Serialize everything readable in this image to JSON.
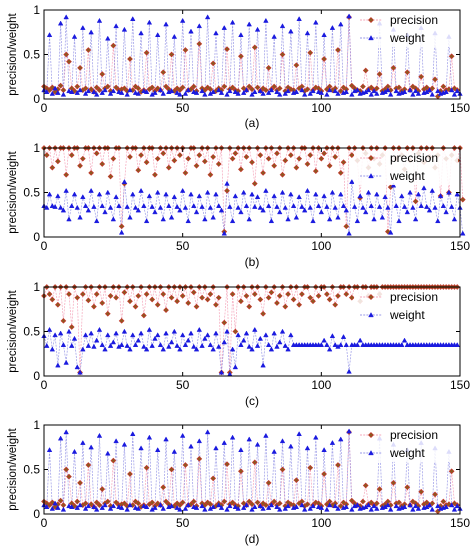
{
  "colors": {
    "precision_line": "#f28aa5",
    "precision_marker": "#c0392b",
    "precision_marker_inner": "#8a5a1f",
    "weight_line": "#7a7adf",
    "weight_marker": "#1a1adf",
    "axis": "#000000",
    "background": "#ffffff"
  },
  "chart_data": [
    {
      "type": "line",
      "caption": "(a)",
      "ylabel": "precision/weight",
      "xlabel": "",
      "xlim": [
        0,
        150
      ],
      "ylim": [
        0,
        1
      ],
      "xticks": [
        "0",
        "50",
        "100",
        "150"
      ],
      "yticks": [
        "0",
        "0.5",
        "1"
      ],
      "legend_position": "top-right",
      "grid": false,
      "series": [
        {
          "name": "precision",
          "pattern": "pr_a"
        },
        {
          "name": "weight",
          "pattern": "wt_a"
        }
      ]
    },
    {
      "type": "line",
      "caption": "(b)",
      "ylabel": "precision/weight",
      "xlabel": "",
      "xlim": [
        0,
        150
      ],
      "ylim": [
        0,
        1
      ],
      "xticks": [
        "0",
        "50",
        "100",
        "150"
      ],
      "yticks": [
        "0",
        "0.5",
        "1"
      ],
      "legend_position": "top-right",
      "grid": false,
      "series": [
        {
          "name": "precision",
          "pattern": "pr_b"
        },
        {
          "name": "weight",
          "pattern": "wt_b"
        }
      ]
    },
    {
      "type": "line",
      "caption": "(c)",
      "ylabel": "precision/weight",
      "xlabel": "",
      "xlim": [
        0,
        150
      ],
      "ylim": [
        0,
        1
      ],
      "xticks": [
        "0",
        "50",
        "100",
        "150"
      ],
      "yticks": [
        "0",
        "0.5",
        "1"
      ],
      "legend_position": "top-right",
      "grid": false,
      "series": [
        {
          "name": "precision",
          "pattern": "pr_c"
        },
        {
          "name": "weight",
          "pattern": "wt_c"
        }
      ]
    },
    {
      "type": "line",
      "caption": "(d)",
      "ylabel": "precision/weight",
      "xlabel": "",
      "xlim": [
        0,
        150
      ],
      "ylim": [
        0,
        1
      ],
      "xticks": [
        "0",
        "50",
        "100",
        "150"
      ],
      "yticks": [
        "0",
        "0.5",
        "1"
      ],
      "legend_position": "top-right",
      "grid": false,
      "series": [
        {
          "name": "precision",
          "pattern": "pr_a"
        },
        {
          "name": "weight",
          "pattern": "wt_a"
        }
      ]
    }
  ],
  "patterns": {
    "pr_a": [
      0.14,
      0.12,
      0.1,
      0.13,
      0.08,
      0.11,
      0.15,
      0.1,
      0.5,
      0.42,
      0.12,
      0.09,
      0.14,
      0.35,
      0.1,
      0.12,
      0.55,
      0.11,
      0.08,
      0.13,
      0.1,
      0.28,
      0.12,
      0.14,
      0.09,
      0.6,
      0.13,
      0.1,
      0.11,
      0.12,
      0.09,
      0.45,
      0.1,
      0.14,
      0.12,
      0.08,
      0.1,
      0.52,
      0.11,
      0.13,
      0.09,
      0.12,
      0.1,
      0.3,
      0.14,
      0.11,
      0.5,
      0.09,
      0.12,
      0.1,
      0.13,
      0.55,
      0.1,
      0.11,
      0.14,
      0.09,
      0.62,
      0.12,
      0.1,
      0.13,
      0.11,
      0.4,
      0.09,
      0.12,
      0.1,
      0.14,
      0.56,
      0.11,
      0.13,
      0.1,
      0.09,
      0.48,
      0.12,
      0.1,
      0.14,
      0.11,
      0.58,
      0.13,
      0.09,
      0.12,
      0.1,
      0.35,
      0.11,
      0.14,
      0.1,
      0.12,
      0.5,
      0.09,
      0.13,
      0.11,
      0.1,
      0.38,
      0.12,
      0.14,
      0.09,
      0.11,
      0.52,
      0.1,
      0.13,
      0.12,
      0.09,
      0.45,
      0.11,
      0.14,
      0.1,
      0.12,
      0.55,
      0.09,
      0.13,
      0.11,
      0.92,
      0.15,
      0.12,
      0.1,
      0.09,
      0.14,
      0.32,
      0.11,
      0.13,
      0.1,
      0.12,
      0.28,
      0.09,
      0.11,
      0.14,
      0.1,
      0.35,
      0.12,
      0.13,
      0.09,
      0.11,
      0.3,
      0.1,
      0.14,
      0.12,
      0.09,
      0.25,
      0.11,
      0.13,
      0.1,
      0.12,
      0.22,
      0.03,
      0.09,
      0.14,
      0.1,
      0.11,
      0.48,
      0.12,
      0.1
    ],
    "wt_a": [
      0.1,
      0.08,
      0.72,
      0.06,
      0.12,
      0.07,
      0.85,
      0.05,
      0.92,
      0.09,
      0.08,
      0.7,
      0.07,
      0.1,
      0.8,
      0.06,
      0.09,
      0.75,
      0.08,
      0.05,
      0.88,
      0.07,
      0.1,
      0.68,
      0.06,
      0.09,
      0.82,
      0.08,
      0.07,
      0.78,
      0.05,
      0.1,
      0.9,
      0.07,
      0.06,
      0.74,
      0.09,
      0.08,
      0.86,
      0.05,
      0.07,
      0.72,
      0.1,
      0.06,
      0.84,
      0.08,
      0.09,
      0.7,
      0.07,
      0.05,
      0.88,
      0.06,
      0.1,
      0.76,
      0.08,
      0.07,
      0.82,
      0.09,
      0.05,
      0.92,
      0.06,
      0.08,
      0.74,
      0.1,
      0.07,
      0.8,
      0.05,
      0.09,
      0.86,
      0.08,
      0.06,
      0.72,
      0.07,
      0.1,
      0.84,
      0.05,
      0.08,
      0.78,
      0.09,
      0.06,
      0.88,
      0.07,
      0.1,
      0.7,
      0.08,
      0.05,
      0.82,
      0.06,
      0.09,
      0.76,
      0.07,
      0.08,
      0.9,
      0.1,
      0.05,
      0.74,
      0.06,
      0.09,
      0.86,
      0.08,
      0.07,
      0.72,
      0.05,
      0.1,
      0.8,
      0.09,
      0.06,
      0.84,
      0.07,
      0.08,
      0.93,
      0.05,
      0.09,
      0.1,
      0.06,
      0.07,
      0.08,
      0.1,
      0.05,
      0.09,
      0.06,
      0.85,
      0.07,
      0.08,
      0.1,
      0.05,
      0.78,
      0.09,
      0.06,
      0.07,
      0.08,
      0.72,
      0.1,
      0.05,
      0.09,
      0.06,
      0.8,
      0.07,
      0.08,
      0.1,
      0.05,
      0.74,
      0.09,
      0.06,
      0.07,
      0.08,
      0.7,
      0.1,
      0.05,
      0.09,
      0.06
    ],
    "pr_b": [
      1.0,
      0.92,
      1.0,
      0.78,
      1.0,
      0.85,
      1.0,
      1.0,
      0.7,
      1.0,
      0.92,
      1.0,
      1.0,
      0.8,
      0.88,
      1.0,
      1.0,
      0.72,
      1.0,
      0.94,
      1.0,
      0.82,
      1.0,
      1.0,
      0.68,
      0.88,
      1.0,
      1.0,
      0.12,
      0.6,
      1.0,
      0.9,
      1.0,
      1.0,
      0.75,
      0.92,
      1.0,
      0.84,
      1.0,
      1.0,
      0.7,
      0.88,
      1.0,
      0.94,
      1.0,
      0.78,
      1.0,
      0.86,
      1.0,
      0.92,
      1.0,
      0.72,
      0.88,
      1.0,
      1.0,
      0.8,
      0.92,
      1.0,
      0.85,
      1.0,
      0.7,
      0.9,
      1.0,
      0.82,
      1.0,
      0.06,
      0.52,
      1.0,
      0.88,
      0.94,
      1.0,
      0.76,
      1.0,
      0.9,
      1.0,
      0.84,
      0.6,
      1.0,
      0.92,
      0.72,
      1.0,
      0.88,
      1.0,
      0.8,
      0.94,
      1.0,
      0.7,
      0.86,
      1.0,
      0.92,
      1.0,
      0.78,
      0.88,
      1.0,
      1.0,
      0.82,
      0.92,
      1.0,
      0.74,
      1.0,
      0.88,
      0.94,
      1.0,
      0.8,
      1.0,
      0.9,
      1.0,
      0.72,
      0.84,
      0.12,
      1.0,
      0.92,
      1.0,
      0.86,
      0.44,
      1.0,
      0.94,
      0.78,
      1.0,
      0.88,
      1.0,
      0.82,
      0.92,
      1.0,
      0.06,
      0.56,
      1.0,
      0.88,
      1.0,
      0.92,
      0.76,
      1.0,
      0.86,
      1.0,
      0.4,
      0.94,
      1.0,
      0.84,
      1.0,
      0.9,
      1.0,
      0.78,
      0.92,
      0.46,
      1.0,
      0.88,
      0.5,
      0.92,
      1.0,
      0.86,
      1.0,
      0.42
    ],
    "wt_b": [
      0.35,
      0.33,
      0.48,
      0.35,
      0.34,
      0.46,
      0.33,
      0.3,
      0.52,
      0.2,
      0.35,
      0.48,
      0.33,
      0.22,
      0.45,
      0.35,
      0.3,
      0.52,
      0.34,
      0.18,
      0.48,
      0.35,
      0.28,
      0.5,
      0.33,
      0.2,
      0.45,
      0.35,
      0.05,
      0.62,
      0.34,
      0.22,
      0.48,
      0.33,
      0.3,
      0.52,
      0.35,
      0.18,
      0.46,
      0.34,
      0.28,
      0.5,
      0.33,
      0.2,
      0.48,
      0.35,
      0.22,
      0.45,
      0.34,
      0.3,
      0.52,
      0.33,
      0.18,
      0.48,
      0.35,
      0.28,
      0.46,
      0.34,
      0.2,
      0.5,
      0.33,
      0.22,
      0.48,
      0.35,
      0.3,
      0.04,
      0.6,
      0.34,
      0.18,
      0.46,
      0.33,
      0.28,
      0.5,
      0.35,
      0.2,
      0.48,
      0.34,
      0.45,
      0.33,
      0.3,
      0.52,
      0.35,
      0.18,
      0.46,
      0.34,
      0.28,
      0.5,
      0.33,
      0.2,
      0.48,
      0.35,
      0.22,
      0.45,
      0.34,
      0.3,
      0.52,
      0.33,
      0.18,
      0.48,
      0.35,
      0.28,
      0.46,
      0.34,
      0.2,
      0.5,
      0.33,
      0.22,
      0.48,
      0.35,
      0.3,
      0.04,
      0.62,
      0.34,
      0.18,
      0.46,
      0.33,
      0.28,
      0.5,
      0.35,
      0.2,
      0.48,
      0.34,
      0.22,
      0.45,
      0.33,
      0.05,
      0.58,
      0.35,
      0.18,
      0.46,
      0.34,
      0.28,
      0.5,
      0.33,
      0.2,
      0.48,
      0.35,
      0.55,
      0.34,
      0.3,
      0.52,
      0.33,
      0.18,
      0.46,
      0.35,
      0.28,
      0.5,
      0.34,
      0.2,
      0.48,
      0.33,
      0.04
    ],
    "pr_c": [
      0.9,
      1.0,
      0.92,
      0.86,
      1.0,
      0.8,
      1.0,
      0.62,
      1.0,
      0.92,
      0.55,
      1.0,
      0.88,
      0.04,
      0.92,
      1.0,
      0.85,
      1.0,
      0.78,
      0.92,
      1.0,
      0.82,
      1.0,
      0.7,
      0.9,
      1.0,
      0.88,
      1.0,
      0.62,
      0.94,
      1.0,
      0.84,
      1.0,
      0.78,
      0.9,
      1.0,
      0.68,
      0.92,
      1.0,
      0.86,
      1.0,
      0.8,
      1.0,
      0.92,
      0.74,
      1.0,
      0.88,
      1.0,
      0.84,
      1.0,
      0.9,
      1.0,
      0.82,
      1.0,
      0.94,
      0.78,
      1.0,
      0.88,
      1.0,
      0.86,
      0.92,
      1.0,
      0.8,
      0.88,
      0.04,
      0.6,
      1.0,
      0.04,
      0.92,
      0.5,
      1.0,
      0.84,
      1.0,
      0.9,
      0.78,
      1.0,
      0.92,
      1.0,
      0.86,
      0.7,
      1.0,
      0.88,
      0.94,
      1.0,
      0.82,
      0.9,
      1.0,
      0.78,
      0.92,
      1.0,
      0.86,
      1.0,
      0.8,
      0.92,
      1.0,
      1.0,
      0.88,
      0.84,
      1.0,
      0.9,
      1.0,
      1.0,
      0.92,
      0.86,
      1.0,
      0.8,
      0.9,
      1.0,
      1.0,
      0.92,
      1.0,
      0.88,
      1.0,
      1.0,
      0.84,
      1.0,
      1.0,
      0.9,
      1.0,
      1.0,
      1.0,
      0.92,
      1.0,
      1.0,
      1.0,
      1.0,
      1.0,
      1.0,
      1.0,
      1.0,
      1.0,
      1.0,
      1.0,
      1.0,
      1.0,
      1.0,
      1.0,
      1.0,
      1.0,
      1.0,
      1.0,
      1.0,
      1.0,
      1.0,
      1.0,
      1.0,
      1.0,
      1.0,
      1.0,
      1.0
    ],
    "wt_c": [
      0.45,
      0.34,
      0.52,
      0.3,
      0.46,
      0.12,
      0.48,
      0.35,
      0.15,
      0.5,
      0.34,
      0.42,
      0.1,
      0.04,
      0.3,
      0.46,
      0.34,
      0.48,
      0.33,
      0.4,
      0.52,
      0.35,
      0.3,
      0.46,
      0.34,
      0.38,
      0.48,
      0.33,
      0.35,
      0.5,
      0.34,
      0.3,
      0.46,
      0.35,
      0.4,
      0.48,
      0.33,
      0.3,
      0.52,
      0.34,
      0.42,
      0.46,
      0.35,
      0.3,
      0.48,
      0.33,
      0.38,
      0.5,
      0.34,
      0.3,
      0.46,
      0.35,
      0.4,
      0.48,
      0.33,
      0.3,
      0.52,
      0.34,
      0.42,
      0.46,
      0.35,
      0.3,
      0.48,
      0.33,
      0.04,
      0.38,
      0.5,
      0.02,
      0.3,
      0.1,
      0.46,
      0.35,
      0.4,
      0.48,
      0.33,
      0.3,
      0.52,
      0.34,
      0.42,
      0.12,
      0.46,
      0.35,
      0.3,
      0.48,
      0.33,
      0.38,
      0.5,
      0.34,
      0.3,
      0.46,
      0.35,
      0.35,
      0.35,
      0.35,
      0.35,
      0.35,
      0.35,
      0.35,
      0.35,
      0.35,
      0.35,
      0.4,
      0.35,
      0.3,
      0.45,
      0.35,
      0.33,
      0.35,
      0.44,
      0.35,
      0.05,
      0.35,
      0.35,
      0.35,
      0.4,
      0.35,
      0.35,
      0.35,
      0.35,
      0.35,
      0.35,
      0.35,
      0.35,
      0.35,
      0.35,
      0.35,
      0.35,
      0.35,
      0.35,
      0.35,
      0.4,
      0.35,
      0.35,
      0.35,
      0.35,
      0.35,
      0.35,
      0.35,
      0.35,
      0.35,
      0.35,
      0.35,
      0.35,
      0.35,
      0.35,
      0.35,
      0.35,
      0.35,
      0.35,
      0.35
    ]
  }
}
